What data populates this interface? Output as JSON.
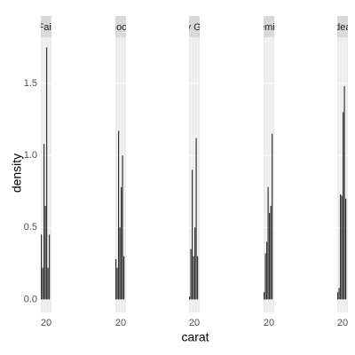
{
  "chart_data": {
    "type": "histogram",
    "x_label": "carat",
    "y_label": "density",
    "ylim": [
      -0.09,
      1.82
    ],
    "yticks": [
      {
        "value": 0,
        "label": "0.0"
      },
      {
        "value": 0.5,
        "label": "0.5"
      },
      {
        "value": 1,
        "label": "1.0"
      },
      {
        "value": 1.5,
        "label": "1.5"
      }
    ],
    "xlim": [
      0.2,
      1.8
    ],
    "x_tick_label": "20",
    "grid": true,
    "color": "#333333",
    "panels": [
      {
        "name": "Fair",
        "bins": [
          0.2,
          0.4,
          0.6,
          0.8,
          1.0,
          1.2,
          1.4,
          1.6
        ],
        "counts": [
          0.45,
          0.22,
          1.08,
          0.65,
          1.75,
          0.22,
          0.45
        ]
      },
      {
        "name": "Good",
        "bins": [
          0.2,
          0.4,
          0.6,
          0.8,
          1.0,
          1.2,
          1.4,
          1.6
        ],
        "counts": [
          0.28,
          0.22,
          1.17,
          0.5,
          0.78,
          1.0,
          0.3
        ]
      },
      {
        "name": "Very Good",
        "bins": [
          0.2,
          0.4,
          0.6,
          0.8,
          1.0,
          1.2,
          1.4,
          1.6
        ],
        "counts": [
          0.02,
          0.35,
          0.9,
          0.3,
          0.5,
          1.12,
          0.3
        ]
      },
      {
        "name": "Premium",
        "bins": [
          0.2,
          0.4,
          0.6,
          0.8,
          1.0,
          1.2,
          1.4,
          1.6
        ],
        "counts": [
          0.05,
          0.32,
          0.4,
          0.78,
          0.6,
          0.65,
          1.15
        ]
      },
      {
        "name": "Ideal",
        "bins": [
          0.2,
          0.4,
          0.6,
          0.8,
          1.0,
          1.2,
          1.4,
          1.6
        ],
        "counts": [
          0.05,
          0.08,
          0.73,
          0.72,
          1.3,
          1.48,
          0.7
        ]
      }
    ]
  }
}
